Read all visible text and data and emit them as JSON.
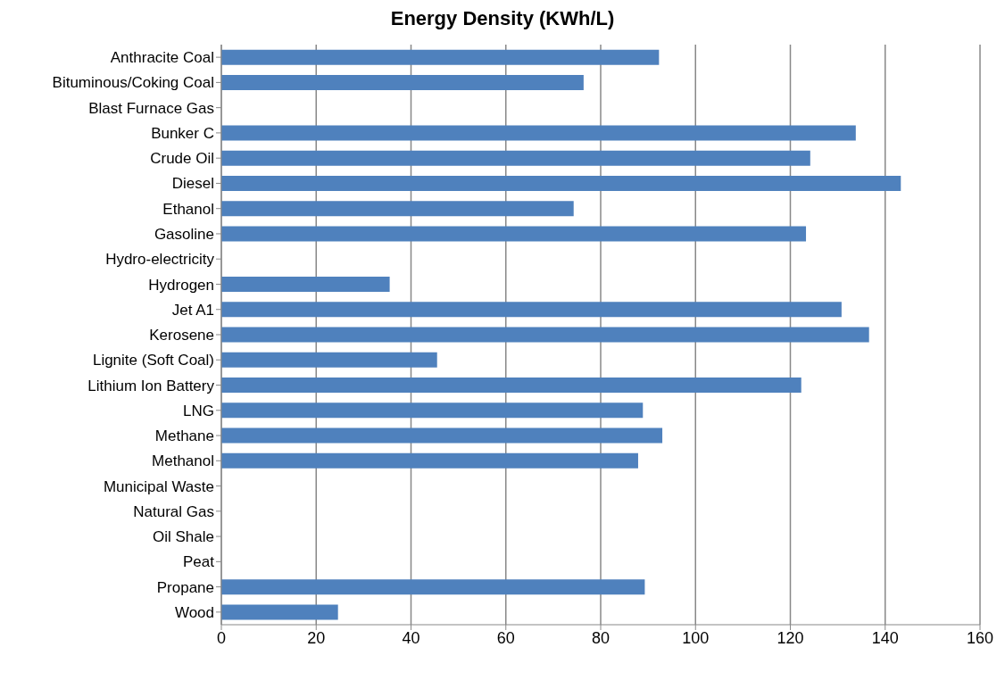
{
  "chart_data": {
    "type": "bar",
    "orientation": "horizontal",
    "title": "Energy Density (KWh/L)",
    "categories": [
      "Anthracite Coal",
      "Bituminous/Coking Coal",
      "Blast Furnace Gas",
      "Bunker C",
      "Crude Oil",
      "Diesel",
      "Ethanol",
      "Gasoline",
      "Hydro-electricity",
      "Hydrogen",
      "Jet A1",
      "Kerosene",
      "Lignite (Soft Coal)",
      "Lithium Ion Battery",
      "LNG",
      "Methane",
      "Methanol",
      "Municipal Waste",
      "Natural Gas",
      "Oil Shale",
      "Peat",
      "Propane",
      "Wood"
    ],
    "values": [
      92.3,
      76.4,
      null,
      133.8,
      124.2,
      143.3,
      74.3,
      123.3,
      null,
      35.5,
      130.8,
      136.6,
      45.5,
      122.3,
      88.9,
      93.0,
      87.9,
      null,
      null,
      null,
      null,
      89.3,
      24.6
    ],
    "color": "#4f81bd",
    "xlim": [
      0,
      160
    ],
    "xticks": [
      0,
      20,
      40,
      60,
      80,
      100,
      120,
      140,
      160
    ],
    "grid": "x"
  }
}
